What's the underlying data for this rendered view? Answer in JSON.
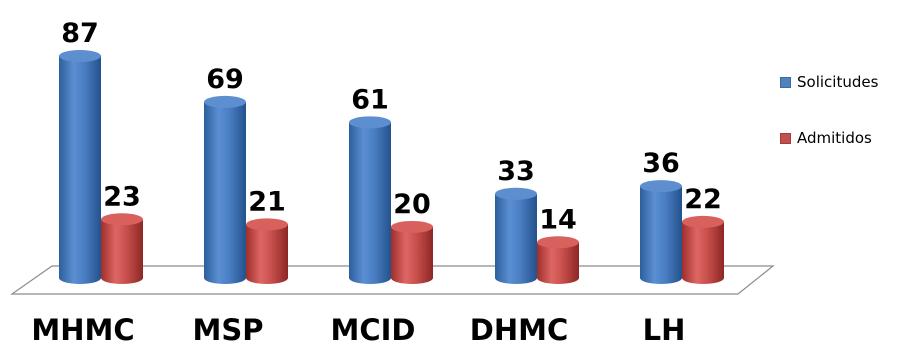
{
  "chart_data": {
    "type": "bar",
    "style": "3d-cylinder",
    "categories": [
      "MHMC",
      "MSP",
      "MCID",
      "DHMC",
      "LH"
    ],
    "series": [
      {
        "name": "Solicitudes",
        "values": [
          87,
          69,
          61,
          33,
          36
        ],
        "color": "#4F81BD"
      },
      {
        "name": "Admitidos",
        "values": [
          23,
          21,
          20,
          14,
          22
        ],
        "color": "#C0504D"
      }
    ],
    "data_labels": true,
    "legend": "right",
    "grid": false,
    "ylim": [
      0,
      87
    ]
  }
}
